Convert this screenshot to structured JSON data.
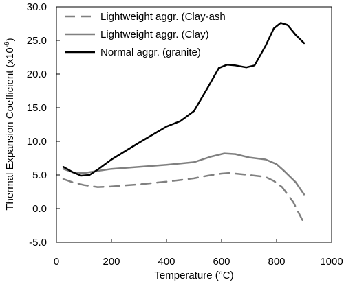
{
  "chart_data": {
    "type": "line",
    "xlabel": "Temperature (°C)",
    "ylabel": "Thermal Expansion Coefficient (x10",
    "ylabel_exp": "-6",
    "ylabel_end": ")",
    "xlim": [
      0,
      1000
    ],
    "ylim": [
      -5,
      30
    ],
    "x_ticks": [
      0,
      200,
      400,
      600,
      800,
      1000
    ],
    "x_tick_labels": [
      "0",
      "200",
      "400",
      "600",
      "800",
      "1000"
    ],
    "y_ticks": [
      -5,
      0,
      5,
      10,
      15,
      20,
      25,
      30
    ],
    "y_tick_labels": [
      "-5.0",
      "0.0",
      "5.0",
      "10.0",
      "15.0",
      "20.0",
      "25.0",
      "30.0"
    ],
    "grid": false,
    "legend_position": "top-left",
    "series": [
      {
        "name": "Lightweight aggr. (Clay-ash",
        "color": "#808080",
        "dash": "dashed",
        "points": [
          [
            25,
            4.4
          ],
          [
            60,
            3.9
          ],
          [
            100,
            3.5
          ],
          [
            150,
            3.2
          ],
          [
            200,
            3.3
          ],
          [
            300,
            3.6
          ],
          [
            400,
            4.0
          ],
          [
            500,
            4.5
          ],
          [
            550,
            4.9
          ],
          [
            600,
            5.2
          ],
          [
            630,
            5.3
          ],
          [
            700,
            5.0
          ],
          [
            760,
            4.7
          ],
          [
            790,
            4.1
          ],
          [
            820,
            3.2
          ],
          [
            860,
            1.0
          ],
          [
            900,
            -2.2
          ]
        ]
      },
      {
        "name": "Lightweight aggr. (Clay)",
        "color": "#808080",
        "dash": "solid",
        "points": [
          [
            25,
            5.9
          ],
          [
            60,
            5.4
          ],
          [
            100,
            5.3
          ],
          [
            150,
            5.6
          ],
          [
            200,
            5.9
          ],
          [
            300,
            6.2
          ],
          [
            400,
            6.5
          ],
          [
            500,
            6.9
          ],
          [
            560,
            7.7
          ],
          [
            610,
            8.2
          ],
          [
            650,
            8.1
          ],
          [
            700,
            7.6
          ],
          [
            760,
            7.3
          ],
          [
            800,
            6.6
          ],
          [
            830,
            5.5
          ],
          [
            870,
            3.9
          ],
          [
            900,
            2.1
          ]
        ]
      },
      {
        "name": "Normal aggr. (granite)",
        "color": "#000000",
        "dash": "solid",
        "points": [
          [
            25,
            6.2
          ],
          [
            60,
            5.4
          ],
          [
            90,
            4.9
          ],
          [
            120,
            5.0
          ],
          [
            150,
            5.8
          ],
          [
            200,
            7.3
          ],
          [
            300,
            9.8
          ],
          [
            400,
            12.2
          ],
          [
            450,
            13.0
          ],
          [
            500,
            14.5
          ],
          [
            550,
            18.0
          ],
          [
            590,
            20.9
          ],
          [
            620,
            21.4
          ],
          [
            650,
            21.3
          ],
          [
            690,
            21.0
          ],
          [
            720,
            21.3
          ],
          [
            760,
            24.2
          ],
          [
            790,
            26.8
          ],
          [
            815,
            27.6
          ],
          [
            840,
            27.3
          ],
          [
            870,
            25.8
          ],
          [
            900,
            24.6
          ]
        ]
      }
    ]
  }
}
